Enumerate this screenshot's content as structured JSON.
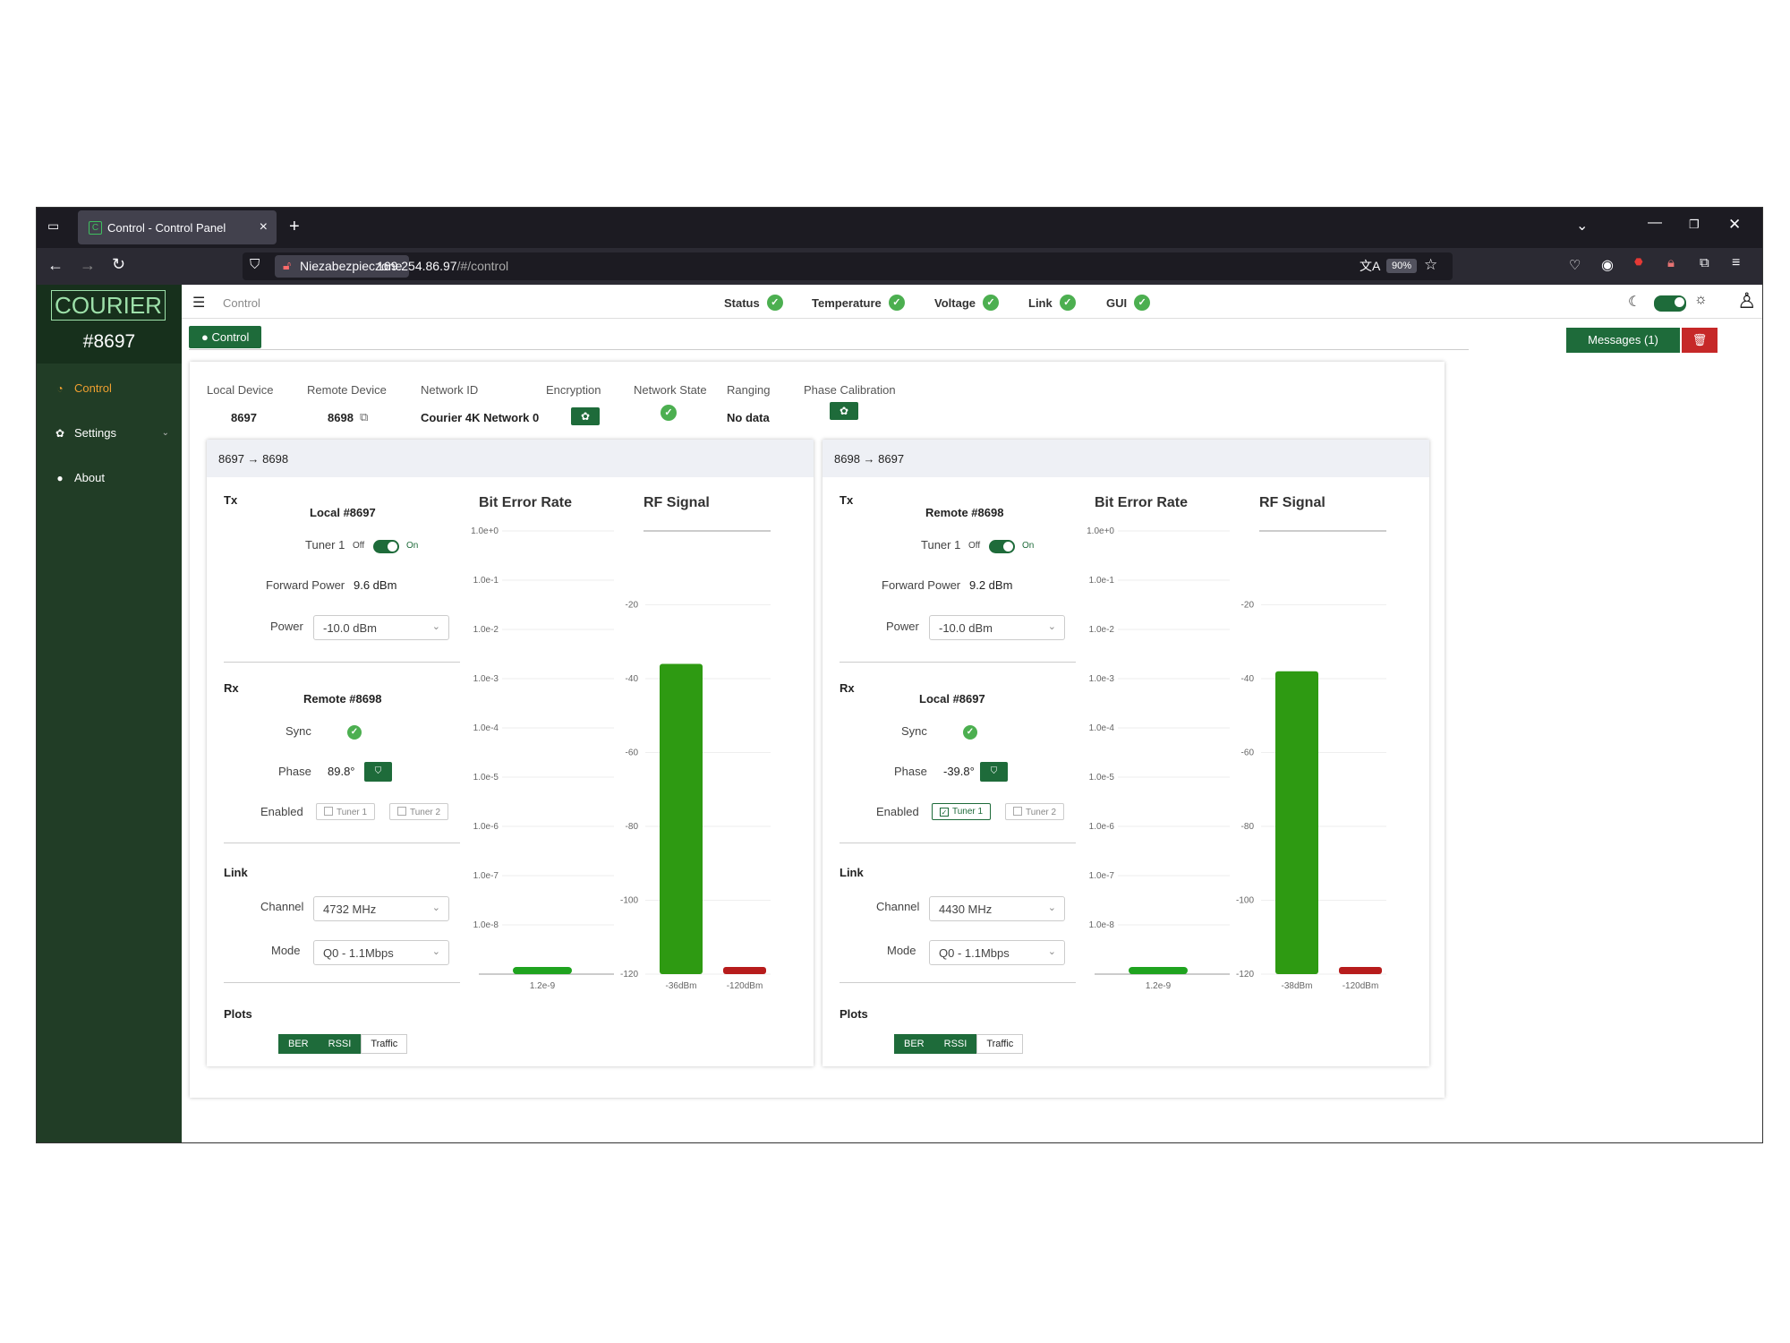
{
  "browser": {
    "tab_title": "Control - Control Panel",
    "tab_favicon": "C",
    "insecure_label": "Niezabezpieczone",
    "url_host": "169.254.86.97",
    "url_path": "/#/control",
    "zoom": "90%"
  },
  "sidebar": {
    "logo": "COURIER",
    "device": "#8697",
    "items": [
      {
        "label": "Control",
        "icon": "dashboard-icon"
      },
      {
        "label": "Settings",
        "icon": "gear-icon"
      },
      {
        "label": "About",
        "icon": "info-icon"
      }
    ]
  },
  "topbar": {
    "breadcrumb": "Control",
    "status": [
      "Status",
      "Temperature",
      "Voltage",
      "Link",
      "GUI"
    ]
  },
  "control_badge": "● Control",
  "messages_label": "Messages (1)",
  "info": {
    "labels": [
      "Local Device",
      "Remote Device",
      "Network ID",
      "Encryption",
      "Network State",
      "Ranging",
      "Phase Calibration"
    ],
    "local_device": "8697",
    "remote_device": "8698",
    "network_id": "Courier 4K Network 0",
    "ranging": "No data"
  },
  "labels": {
    "tx": "Tx",
    "rx": "Rx",
    "link": "Link",
    "plots": "Plots",
    "tuner1": "Tuner 1",
    "off": "Off",
    "on": "On",
    "forward_power": "Forward Power",
    "power": "Power",
    "sync": "Sync",
    "phase": "Phase",
    "enabled": "Enabled",
    "chip_tuner1": "Tuner 1",
    "chip_tuner2": "Tuner 2",
    "channel": "Channel",
    "mode": "Mode",
    "ber": "BER",
    "rssi": "RSSI",
    "traffic": "Traffic",
    "ber_title": "Bit Error Rate",
    "rf_title": "RF Signal"
  },
  "panels": [
    {
      "title": "8697 → 8698",
      "tx_device": "Local #8697",
      "forward_power": "9.6 dBm",
      "power": "-10.0 dBm",
      "rx_device": "Remote #8698",
      "phase": "89.8°",
      "tuner1_enabled": false,
      "channel": "4732 MHz",
      "mode": "Q0 - 1.1Mbps"
    },
    {
      "title": "8698 → 8697",
      "tx_device": "Remote #8698",
      "forward_power": "9.2 dBm",
      "power": "-10.0 dBm",
      "rx_device": "Local #8697",
      "phase": "-39.8°",
      "tuner1_enabled": true,
      "channel": "4430 MHz",
      "mode": "Q0 - 1.1Mbps"
    }
  ],
  "chart_data": [
    {
      "type": "bar",
      "title": "Bit Error Rate",
      "y_ticks": [
        "1.0e+0",
        "1.0e-1",
        "1.0e-2",
        "1.0e-3",
        "1.0e-4",
        "1.0e-5",
        "1.0e-6",
        "1.0e-7",
        "1.0e-8"
      ],
      "scale": "log",
      "ylim": [
        1e-09,
        1
      ],
      "categories": [
        "1.2e-9"
      ],
      "values": [
        1.2e-09
      ],
      "color": "#1fa31f"
    },
    {
      "type": "bar",
      "title": "RF Signal",
      "y_ticks": [
        "-20",
        "-40",
        "-60",
        "-80",
        "-100",
        "-120"
      ],
      "ylim": [
        -120,
        0
      ],
      "categories": [
        "-36dBm",
        "-120dBm"
      ],
      "values": [
        -36,
        -120
      ],
      "colors": [
        "#2e9a12",
        "#b71c1c"
      ]
    },
    {
      "type": "bar",
      "title": "Bit Error Rate",
      "y_ticks": [
        "1.0e+0",
        "1.0e-1",
        "1.0e-2",
        "1.0e-3",
        "1.0e-4",
        "1.0e-5",
        "1.0e-6",
        "1.0e-7",
        "1.0e-8"
      ],
      "scale": "log",
      "ylim": [
        1e-09,
        1
      ],
      "categories": [
        "1.2e-9"
      ],
      "values": [
        1.2e-09
      ],
      "color": "#1fa31f"
    },
    {
      "type": "bar",
      "title": "RF Signal",
      "y_ticks": [
        "-20",
        "-40",
        "-60",
        "-80",
        "-100",
        "-120"
      ],
      "ylim": [
        -120,
        0
      ],
      "categories": [
        "-38dBm",
        "-120dBm"
      ],
      "values": [
        -38,
        -120
      ],
      "colors": [
        "#2e9a12",
        "#b71c1c"
      ]
    }
  ]
}
